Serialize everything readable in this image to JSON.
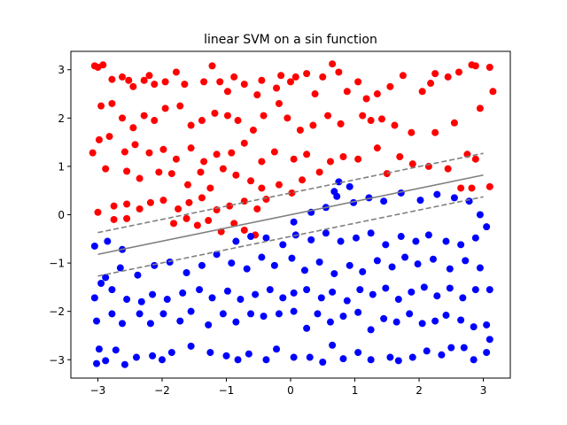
{
  "chart_data": {
    "type": "scatter",
    "title": "linear SVM on a sin function",
    "xlabel": "",
    "ylabel": "",
    "xlim": [
      -3.42,
      3.42
    ],
    "ylim": [
      -3.38,
      3.38
    ],
    "xticks": [
      -3,
      -2,
      -1,
      0,
      1,
      2,
      3
    ],
    "yticks": [
      -3,
      -2,
      -1,
      0,
      1,
      2,
      3
    ],
    "grid": false,
    "legend": "none",
    "colors": {
      "red_class": "#ff0000",
      "blue_class": "#0000ff",
      "decision_line": "#808080"
    },
    "lines": [
      {
        "style": "solid",
        "x": [
          -3.0,
          3.0
        ],
        "y": [
          -0.82,
          0.82
        ]
      },
      {
        "style": "dashed",
        "x": [
          -3.0,
          3.0
        ],
        "y": [
          -0.37,
          1.27
        ]
      },
      {
        "style": "dashed",
        "x": [
          -3.0,
          3.0
        ],
        "y": [
          -1.27,
          0.37
        ]
      }
    ],
    "series": [
      {
        "color": "#ff0000",
        "points": [
          [
            -3.05,
            3.08
          ],
          [
            -3.0,
            3.05
          ],
          [
            -2.92,
            3.1
          ],
          [
            -2.78,
            2.8
          ],
          [
            -2.62,
            2.85
          ],
          [
            -2.52,
            2.78
          ],
          [
            -2.45,
            2.65
          ],
          [
            -2.28,
            2.78
          ],
          [
            -2.2,
            2.88
          ],
          [
            -2.12,
            2.7
          ],
          [
            -1.95,
            2.75
          ],
          [
            -1.78,
            2.95
          ],
          [
            -1.65,
            2.7
          ],
          [
            -1.35,
            2.75
          ],
          [
            -1.22,
            3.08
          ],
          [
            -1.1,
            2.75
          ],
          [
            -0.98,
            2.55
          ],
          [
            -0.88,
            2.85
          ],
          [
            -0.72,
            2.7
          ],
          [
            -0.52,
            2.48
          ],
          [
            -0.45,
            2.78
          ],
          [
            -0.22,
            2.62
          ],
          [
            -0.15,
            2.88
          ],
          [
            0.0,
            2.75
          ],
          [
            0.08,
            2.85
          ],
          [
            0.25,
            2.92
          ],
          [
            0.38,
            2.5
          ],
          [
            0.5,
            2.85
          ],
          [
            0.65,
            3.12
          ],
          [
            0.75,
            2.95
          ],
          [
            0.88,
            2.55
          ],
          [
            1.05,
            2.75
          ],
          [
            1.18,
            2.4
          ],
          [
            1.35,
            2.5
          ],
          [
            1.55,
            2.65
          ],
          [
            1.75,
            2.88
          ],
          [
            2.05,
            2.55
          ],
          [
            2.18,
            2.72
          ],
          [
            2.25,
            2.92
          ],
          [
            2.45,
            2.85
          ],
          [
            2.62,
            2.95
          ],
          [
            2.82,
            3.1
          ],
          [
            2.88,
            3.08
          ],
          [
            2.95,
            2.2
          ],
          [
            3.1,
            3.05
          ],
          [
            3.15,
            2.55
          ],
          [
            -2.95,
            2.25
          ],
          [
            -2.78,
            2.3
          ],
          [
            -2.62,
            2.0
          ],
          [
            -2.45,
            1.8
          ],
          [
            -2.28,
            2.05
          ],
          [
            -2.12,
            1.95
          ],
          [
            -1.95,
            2.2
          ],
          [
            -1.72,
            2.25
          ],
          [
            -1.55,
            1.85
          ],
          [
            -1.38,
            1.95
          ],
          [
            -1.18,
            2.1
          ],
          [
            -0.98,
            2.05
          ],
          [
            -0.82,
            1.95
          ],
          [
            -0.58,
            1.75
          ],
          [
            -0.42,
            2.05
          ],
          [
            -0.18,
            2.3
          ],
          [
            -0.05,
            2.0
          ],
          [
            0.15,
            1.75
          ],
          [
            0.35,
            1.85
          ],
          [
            0.58,
            2.05
          ],
          [
            0.78,
            1.88
          ],
          [
            1.12,
            2.05
          ],
          [
            1.25,
            1.95
          ],
          [
            1.42,
            1.98
          ],
          [
            1.62,
            1.85
          ],
          [
            1.88,
            1.7
          ],
          [
            2.25,
            1.7
          ],
          [
            2.55,
            1.9
          ],
          [
            -2.98,
            1.55
          ],
          [
            -2.82,
            1.62
          ],
          [
            -2.58,
            1.3
          ],
          [
            -2.42,
            1.45
          ],
          [
            -2.2,
            1.28
          ],
          [
            -1.98,
            1.35
          ],
          [
            -1.78,
            1.15
          ],
          [
            -1.55,
            1.38
          ],
          [
            -1.35,
            1.1
          ],
          [
            -1.15,
            1.25
          ],
          [
            -0.92,
            1.28
          ],
          [
            -0.72,
            1.48
          ],
          [
            -0.45,
            1.1
          ],
          [
            -0.25,
            1.3
          ],
          [
            0.05,
            1.15
          ],
          [
            0.25,
            1.25
          ],
          [
            0.45,
            0.88
          ],
          [
            0.62,
            1.1
          ],
          [
            0.82,
            1.2
          ],
          [
            1.05,
            1.15
          ],
          [
            1.35,
            1.38
          ],
          [
            1.5,
            0.85
          ],
          [
            1.7,
            1.2
          ],
          [
            1.9,
            1.05
          ],
          [
            2.15,
            1.0
          ],
          [
            2.45,
            0.95
          ],
          [
            2.75,
            1.25
          ],
          [
            2.88,
            1.15
          ],
          [
            -2.55,
            0.9
          ],
          [
            -2.35,
            0.75
          ],
          [
            -2.05,
            0.88
          ],
          [
            -1.85,
            0.85
          ],
          [
            -1.6,
            0.62
          ],
          [
            -1.4,
            0.88
          ],
          [
            -1.25,
            0.55
          ],
          [
            -1.05,
            0.95
          ],
          [
            -0.85,
            0.82
          ],
          [
            -0.62,
            0.7
          ],
          [
            -0.45,
            0.55
          ],
          [
            -0.18,
            0.62
          ],
          [
            0.02,
            0.45
          ],
          [
            0.18,
            0.72
          ],
          [
            -2.75,
            0.18
          ],
          [
            -2.55,
            0.22
          ],
          [
            -2.35,
            0.12
          ],
          [
            -2.18,
            0.25
          ],
          [
            -1.98,
            0.3
          ],
          [
            -1.75,
            0.12
          ],
          [
            -1.58,
            0.25
          ],
          [
            -1.38,
            0.35
          ],
          [
            -1.15,
            0.1
          ],
          [
            -0.95,
            0.18
          ],
          [
            -0.72,
            0.28
          ],
          [
            -0.52,
            0.12
          ],
          [
            -0.38,
            0.32
          ],
          [
            -1.82,
            -0.18
          ],
          [
            -1.62,
            -0.08
          ],
          [
            -1.45,
            -0.22
          ],
          [
            -1.28,
            -0.12
          ],
          [
            -1.08,
            -0.35
          ],
          [
            -0.88,
            -0.18
          ],
          [
            -0.72,
            -0.32
          ],
          [
            -0.55,
            -0.42
          ],
          [
            -2.75,
            -0.1
          ],
          [
            -2.55,
            -0.08
          ],
          [
            -3.0,
            0.05
          ],
          [
            -3.08,
            1.28
          ],
          [
            -2.88,
            0.95
          ],
          [
            2.82,
            0.55
          ],
          [
            3.1,
            0.58
          ],
          [
            2.65,
            0.55
          ]
        ]
      },
      {
        "color": "#0000ff",
        "points": [
          [
            -3.02,
            -3.08
          ],
          [
            -2.98,
            -2.78
          ],
          [
            -2.88,
            -3.02
          ],
          [
            -2.72,
            -2.8
          ],
          [
            -2.58,
            -3.1
          ],
          [
            -2.4,
            -2.95
          ],
          [
            -2.15,
            -2.92
          ],
          [
            -2.0,
            -3.0
          ],
          [
            -1.85,
            -2.85
          ],
          [
            -1.55,
            -2.72
          ],
          [
            -1.25,
            -2.85
          ],
          [
            -1.0,
            -2.92
          ],
          [
            -0.82,
            -3.0
          ],
          [
            -0.65,
            -2.88
          ],
          [
            -0.38,
            -3.0
          ],
          [
            -0.22,
            -2.78
          ],
          [
            0.05,
            -2.95
          ],
          [
            0.3,
            -2.95
          ],
          [
            0.5,
            -3.05
          ],
          [
            0.65,
            -2.7
          ],
          [
            0.82,
            -2.98
          ],
          [
            1.05,
            -2.85
          ],
          [
            1.25,
            -3.0
          ],
          [
            1.55,
            -2.95
          ],
          [
            1.68,
            -3.02
          ],
          [
            1.9,
            -2.95
          ],
          [
            2.12,
            -2.82
          ],
          [
            2.35,
            -2.9
          ],
          [
            2.5,
            -2.75
          ],
          [
            2.7,
            -2.75
          ],
          [
            2.85,
            -3.0
          ],
          [
            3.05,
            -2.85
          ],
          [
            3.1,
            -2.58
          ],
          [
            -3.02,
            -2.2
          ],
          [
            -2.78,
            -2.05
          ],
          [
            -2.62,
            -2.25
          ],
          [
            -2.35,
            -2.05
          ],
          [
            -2.18,
            -2.25
          ],
          [
            -1.98,
            -2.05
          ],
          [
            -1.72,
            -2.2
          ],
          [
            -1.55,
            -2.0
          ],
          [
            -1.28,
            -2.28
          ],
          [
            -1.05,
            -2.05
          ],
          [
            -0.85,
            -2.22
          ],
          [
            -0.62,
            -2.05
          ],
          [
            -0.42,
            -2.1
          ],
          [
            -0.18,
            -2.05
          ],
          [
            0.05,
            -2.0
          ],
          [
            0.25,
            -2.35
          ],
          [
            0.42,
            -2.05
          ],
          [
            0.62,
            -2.22
          ],
          [
            0.82,
            -2.1
          ],
          [
            1.05,
            -2.02
          ],
          [
            1.25,
            -2.38
          ],
          [
            1.45,
            -2.15
          ],
          [
            1.65,
            -2.22
          ],
          [
            1.85,
            -2.05
          ],
          [
            2.05,
            -2.25
          ],
          [
            2.25,
            -2.2
          ],
          [
            2.42,
            -2.08
          ],
          [
            2.65,
            -2.18
          ],
          [
            2.85,
            -2.32
          ],
          [
            3.05,
            -2.28
          ],
          [
            -3.05,
            -1.72
          ],
          [
            -2.95,
            -1.42
          ],
          [
            -2.78,
            -1.55
          ],
          [
            -2.55,
            -1.75
          ],
          [
            -2.32,
            -1.8
          ],
          [
            -2.15,
            -1.65
          ],
          [
            -1.92,
            -1.75
          ],
          [
            -1.68,
            -1.62
          ],
          [
            -1.42,
            -1.55
          ],
          [
            -1.22,
            -1.72
          ],
          [
            -0.98,
            -1.58
          ],
          [
            -0.78,
            -1.75
          ],
          [
            -0.55,
            -1.65
          ],
          [
            -0.32,
            -1.55
          ],
          [
            -0.12,
            -1.72
          ],
          [
            0.05,
            -1.62
          ],
          [
            0.25,
            -1.55
          ],
          [
            0.48,
            -1.72
          ],
          [
            0.65,
            -1.6
          ],
          [
            0.88,
            -1.78
          ],
          [
            1.08,
            -1.55
          ],
          [
            1.28,
            -1.65
          ],
          [
            1.48,
            -1.52
          ],
          [
            1.68,
            -1.75
          ],
          [
            1.88,
            -1.6
          ],
          [
            2.08,
            -1.5
          ],
          [
            2.28,
            -1.68
          ],
          [
            2.48,
            -1.52
          ],
          [
            2.68,
            -1.72
          ],
          [
            2.88,
            -1.55
          ],
          [
            3.1,
            -1.55
          ],
          [
            -2.88,
            -1.3
          ],
          [
            -2.65,
            -1.1
          ],
          [
            -2.38,
            -1.25
          ],
          [
            -2.12,
            -1.05
          ],
          [
            -1.88,
            -0.98
          ],
          [
            -1.62,
            -1.2
          ],
          [
            -1.38,
            -1.05
          ],
          [
            -1.15,
            -0.82
          ],
          [
            -0.92,
            -1.0
          ],
          [
            -0.68,
            -1.12
          ],
          [
            -0.45,
            -0.88
          ],
          [
            -0.25,
            -1.05
          ],
          [
            0.02,
            -0.9
          ],
          [
            0.22,
            -1.15
          ],
          [
            0.45,
            -0.98
          ],
          [
            0.68,
            -1.22
          ],
          [
            0.92,
            -1.05
          ],
          [
            1.12,
            -1.18
          ],
          [
            1.35,
            -0.95
          ],
          [
            1.58,
            -1.08
          ],
          [
            1.78,
            -0.88
          ],
          [
            1.98,
            -1.02
          ],
          [
            2.22,
            -0.92
          ],
          [
            2.48,
            -1.12
          ],
          [
            2.72,
            -0.95
          ],
          [
            2.95,
            -1.1
          ],
          [
            -3.05,
            -0.65
          ],
          [
            -2.85,
            -0.55
          ],
          [
            -2.62,
            -0.72
          ],
          [
            -0.85,
            -0.55
          ],
          [
            -0.62,
            -0.45
          ],
          [
            -0.38,
            -0.48
          ],
          [
            -0.12,
            -0.62
          ],
          [
            0.08,
            -0.42
          ],
          [
            0.32,
            -0.52
          ],
          [
            0.55,
            -0.38
          ],
          [
            0.78,
            -0.55
          ],
          [
            1.02,
            -0.48
          ],
          [
            1.25,
            -0.38
          ],
          [
            1.48,
            -0.62
          ],
          [
            1.72,
            -0.45
          ],
          [
            1.95,
            -0.55
          ],
          [
            2.15,
            -0.42
          ],
          [
            2.42,
            -0.55
          ],
          [
            2.65,
            -0.62
          ],
          [
            2.88,
            -0.48
          ],
          [
            0.05,
            -0.15
          ],
          [
            0.32,
            0.05
          ],
          [
            0.55,
            0.15
          ],
          [
            0.72,
            0.38
          ],
          [
            0.98,
            0.25
          ],
          [
            1.22,
            0.35
          ],
          [
            1.45,
            0.28
          ],
          [
            1.72,
            0.45
          ],
          [
            2.02,
            0.3
          ],
          [
            2.28,
            0.42
          ],
          [
            2.55,
            0.35
          ],
          [
            2.78,
            0.28
          ],
          [
            3.05,
            -0.25
          ],
          [
            2.95,
            0.0
          ],
          [
            0.75,
            0.68
          ],
          [
            0.92,
            0.58
          ],
          [
            0.68,
            0.48
          ]
        ]
      }
    ]
  }
}
